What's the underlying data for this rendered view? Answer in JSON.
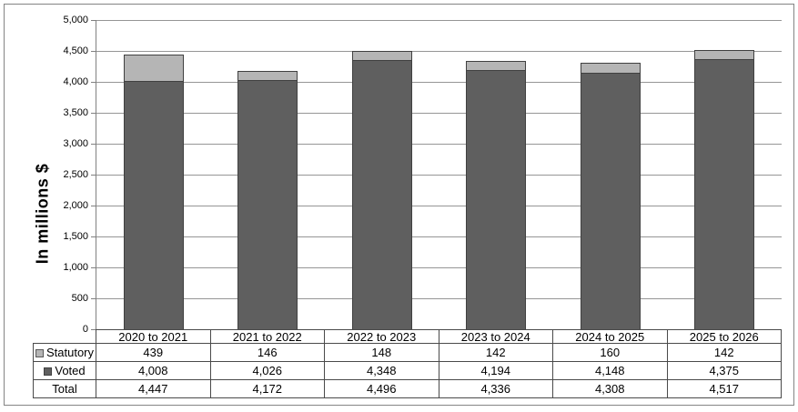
{
  "chart_data": {
    "type": "bar",
    "stacked": true,
    "title": "",
    "ylabel": "In millions $",
    "ylim": [
      0,
      5000
    ],
    "ytick_step": 500,
    "grid": true,
    "legend_position": "table-row-headers",
    "categories": [
      "2020 to 2021",
      "2021 to 2022",
      "2022 to 2023",
      "2023 to 2024",
      "2024 to 2025",
      "2025 to 2026"
    ],
    "series": [
      {
        "name": "Statutory",
        "color": "#b5b5b5",
        "values": [
          439,
          146,
          148,
          142,
          160,
          142
        ]
      },
      {
        "name": "Voted",
        "color": "#5f5f5f",
        "values": [
          4008,
          4026,
          4348,
          4194,
          4148,
          4375
        ]
      }
    ],
    "totals": {
      "name": "Total",
      "values": [
        4447,
        4172,
        4496,
        4336,
        4308,
        4517
      ]
    }
  },
  "y_axis": {
    "tick_labels": [
      "5,000",
      "4,500",
      "4,000",
      "3,500",
      "3,000",
      "2,500",
      "2,000",
      "1,500",
      "1,000",
      "500",
      "0"
    ]
  },
  "table": {
    "rows": [
      {
        "label": "Statutory",
        "swatch_color": "#b5b5b5",
        "swatch_border": "#595959",
        "values": [
          "439",
          "146",
          "148",
          "142",
          "160",
          "142"
        ]
      },
      {
        "label": "Voted",
        "swatch_color": "#5f5f5f",
        "swatch_border": "#404040",
        "values": [
          "4,008",
          "4,026",
          "4,348",
          "4,194",
          "4,148",
          "4,375"
        ]
      },
      {
        "label": "Total",
        "swatch_color": null,
        "swatch_border": null,
        "values": [
          "4,447",
          "4,172",
          "4,496",
          "4,336",
          "4,308",
          "4,517"
        ]
      }
    ]
  },
  "colors": {
    "statutory_fill": "#b5b5b5",
    "voted_fill": "#5f5f5f",
    "bar_border": "#404040",
    "gridline": "#969696",
    "axis": "#808080",
    "table_border": "#4a4a4a",
    "outer_border": "#848484"
  }
}
